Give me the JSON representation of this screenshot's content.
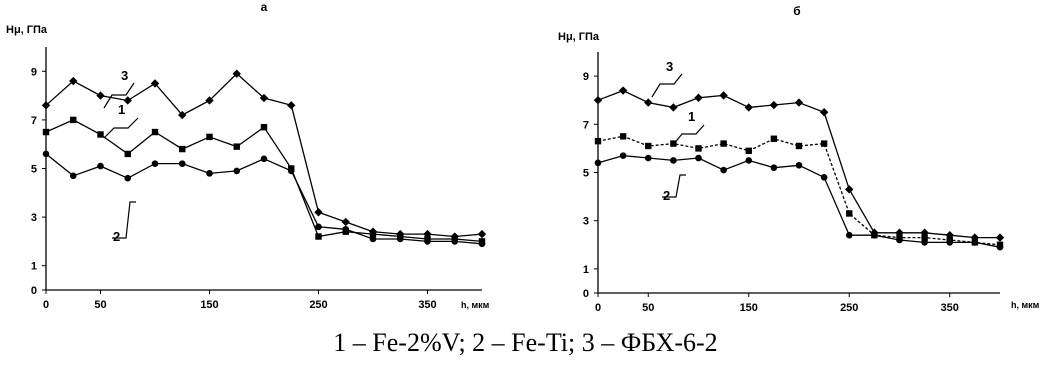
{
  "caption": "1 – Fe-2%V; 2 – Fe-Ti; 3 – ФБХ-6-2",
  "chart_data": [
    {
      "type": "line",
      "title": "а",
      "ylabel": "Hμ, ГПа",
      "xlabel": "h, мкм",
      "xlim": [
        0,
        400
      ],
      "ylim": [
        0,
        10
      ],
      "xticks": [
        "0",
        "50",
        "150",
        "250",
        "350"
      ],
      "yticks": [
        "0",
        "1",
        "3",
        "5",
        "7",
        "9"
      ],
      "grid": false,
      "series": [
        {
          "name": "3",
          "marker": "diamond",
          "x": [
            0,
            25,
            50,
            75,
            100,
            125,
            150,
            175,
            200,
            225,
            250,
            275,
            300,
            325,
            350,
            375,
            400
          ],
          "y": [
            7.6,
            8.6,
            8.0,
            7.8,
            8.5,
            7.2,
            7.8,
            8.9,
            7.9,
            7.6,
            3.2,
            2.8,
            2.4,
            2.3,
            2.3,
            2.2,
            2.3
          ]
        },
        {
          "name": "1",
          "marker": "square",
          "x": [
            0,
            25,
            50,
            75,
            100,
            125,
            150,
            175,
            200,
            225,
            250,
            275,
            300,
            325,
            350,
            375,
            400
          ],
          "y": [
            6.5,
            7.0,
            6.4,
            5.6,
            6.5,
            5.8,
            6.3,
            5.9,
            6.7,
            5.0,
            2.2,
            2.4,
            2.3,
            2.2,
            2.1,
            2.1,
            2.0
          ]
        },
        {
          "name": "2",
          "marker": "circle",
          "x": [
            0,
            25,
            50,
            75,
            100,
            125,
            150,
            175,
            200,
            225,
            250,
            275,
            300,
            325,
            350,
            375,
            400
          ],
          "y": [
            5.6,
            4.7,
            5.1,
            4.6,
            5.2,
            5.2,
            4.8,
            4.9,
            5.4,
            4.9,
            2.6,
            2.5,
            2.1,
            2.1,
            2.0,
            2.0,
            1.9
          ]
        }
      ]
    },
    {
      "type": "line",
      "title": "б",
      "ylabel": "Hμ, ГПа",
      "xlabel": "h, мкм",
      "xlim": [
        0,
        400
      ],
      "ylim": [
        0,
        10
      ],
      "xticks": [
        "0",
        "50",
        "150",
        "250",
        "350"
      ],
      "yticks": [
        "0",
        "1",
        "3",
        "5",
        "7",
        "9"
      ],
      "grid": false,
      "series": [
        {
          "name": "3",
          "marker": "diamond",
          "x": [
            0,
            25,
            50,
            75,
            100,
            125,
            150,
            175,
            200,
            225,
            250,
            275,
            300,
            325,
            350,
            375,
            400
          ],
          "y": [
            8.0,
            8.4,
            7.9,
            7.7,
            8.1,
            8.2,
            7.7,
            7.8,
            7.9,
            7.5,
            4.3,
            2.5,
            2.5,
            2.5,
            2.4,
            2.3,
            2.3
          ]
        },
        {
          "name": "1",
          "marker": "square",
          "x": [
            0,
            25,
            50,
            75,
            100,
            125,
            150,
            175,
            200,
            225,
            250,
            275,
            300,
            325,
            350,
            375,
            400
          ],
          "y": [
            6.3,
            6.5,
            6.1,
            6.2,
            6.0,
            6.2,
            5.9,
            6.4,
            6.1,
            6.2,
            3.3,
            2.4,
            2.3,
            2.3,
            2.2,
            2.1,
            2.0
          ]
        },
        {
          "name": "2",
          "marker": "circle",
          "x": [
            0,
            25,
            50,
            75,
            100,
            125,
            150,
            175,
            200,
            225,
            250,
            275,
            300,
            325,
            350,
            375,
            400
          ],
          "y": [
            5.4,
            5.7,
            5.6,
            5.5,
            5.6,
            5.1,
            5.5,
            5.2,
            5.3,
            4.8,
            2.4,
            2.4,
            2.2,
            2.1,
            2.1,
            2.1,
            1.9
          ]
        }
      ]
    }
  ]
}
